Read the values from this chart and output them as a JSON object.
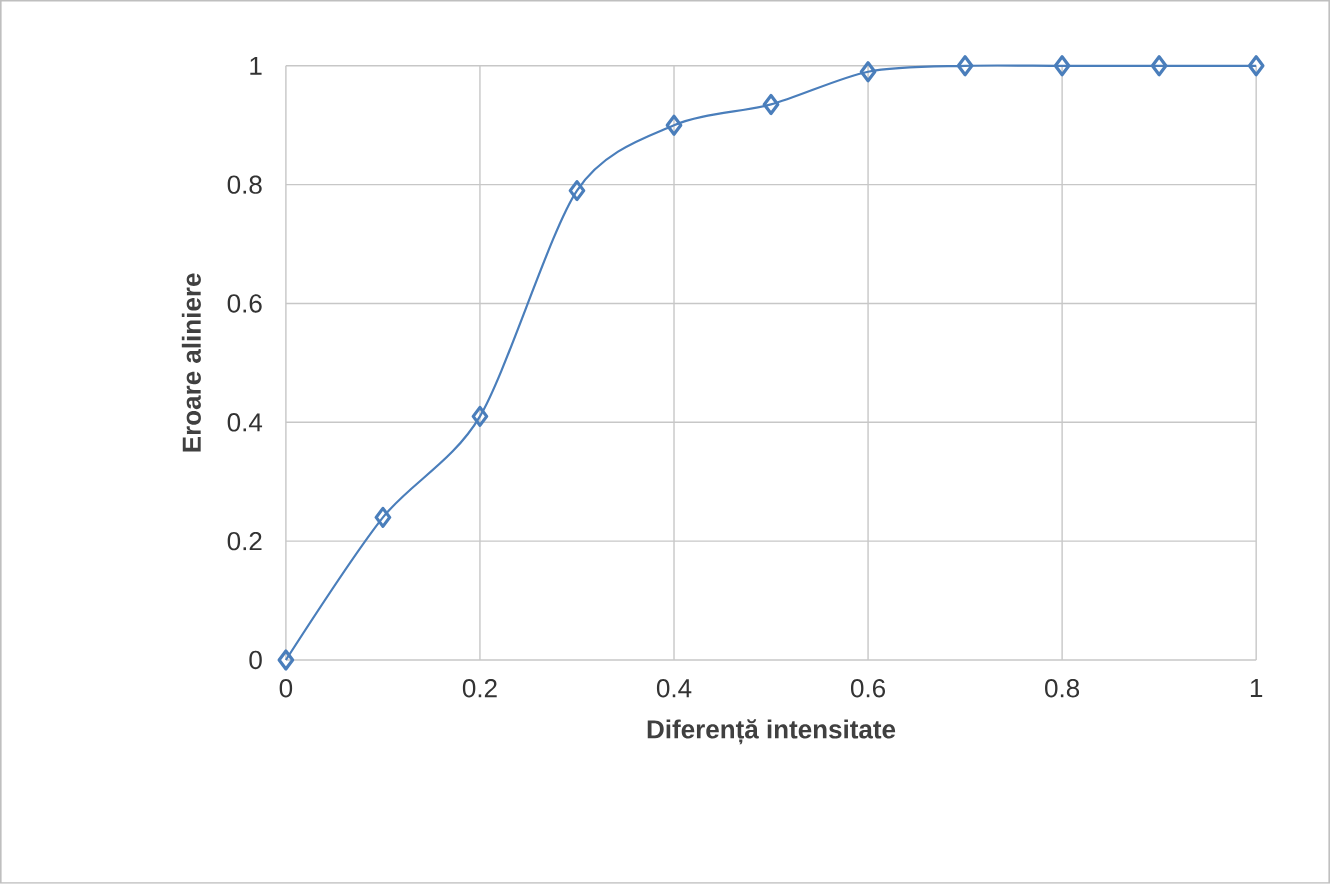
{
  "chart_data": {
    "type": "line",
    "xlabel": "Diferență intensitate",
    "ylabel": "Eroare aliniere",
    "x": [
      0,
      0.1,
      0.2,
      0.3,
      0.4,
      0.5,
      0.6,
      0.7,
      0.8,
      0.9,
      1
    ],
    "series": [
      {
        "color": "#4a7ebb",
        "values": [
          0,
          0.24,
          0.41,
          0.79,
          0.9,
          0.935,
          0.99,
          1,
          1,
          1,
          1
        ]
      }
    ],
    "xlim": [
      0,
      1
    ],
    "ylim": [
      0,
      1
    ],
    "xticks": [
      0,
      0.2,
      0.4,
      0.6,
      0.8,
      1
    ],
    "yticks": [
      0,
      0.2,
      0.4,
      0.6,
      0.8,
      1
    ],
    "grid": true,
    "marker": "diamond",
    "line_style": "solid"
  }
}
